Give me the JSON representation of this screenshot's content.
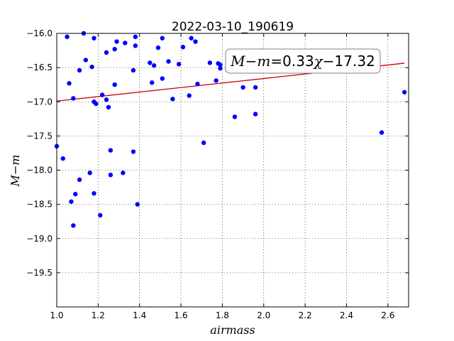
{
  "chart_data": {
    "type": "scatter",
    "title": "2022-03-10_190619",
    "xlabel": "airmass",
    "ylabel": "M−m",
    "xlim": [
      1.0,
      2.7
    ],
    "ylim": [
      -16.0,
      -20.0
    ],
    "y_inverted": true,
    "x_ticks": [
      1.0,
      1.2,
      1.4,
      1.6,
      1.8,
      2.0,
      2.2,
      2.4,
      2.6
    ],
    "x_tick_labels": [
      "1.0",
      "1.2",
      "1.4",
      "1.6",
      "1.8",
      "2.0",
      "2.2",
      "2.4",
      "2.6"
    ],
    "y_ticks": [
      -16.0,
      -16.5,
      -17.0,
      -17.5,
      -18.0,
      -18.5,
      -19.0,
      -19.5
    ],
    "y_tick_labels": [
      "−16.0",
      "−16.5",
      "−17.0",
      "−17.5",
      "−18.0",
      "−18.5",
      "−19.0",
      "−19.5"
    ],
    "grid": true,
    "series": [
      {
        "kind": "points",
        "color": "#0000ff",
        "points": [
          [
            1.0,
            -17.65
          ],
          [
            1.03,
            -17.83
          ],
          [
            1.05,
            -16.05
          ],
          [
            1.06,
            -16.73
          ],
          [
            1.07,
            -18.46
          ],
          [
            1.08,
            -16.95
          ],
          [
            1.08,
            -18.81
          ],
          [
            1.09,
            -18.35
          ],
          [
            1.11,
            -18.14
          ],
          [
            1.11,
            -16.54
          ],
          [
            1.13,
            -16.0
          ],
          [
            1.14,
            -16.39
          ],
          [
            1.16,
            -18.04
          ],
          [
            1.17,
            -16.49
          ],
          [
            1.18,
            -16.07
          ],
          [
            1.18,
            -17.0
          ],
          [
            1.18,
            -18.34
          ],
          [
            1.19,
            -17.03
          ],
          [
            1.21,
            -18.66
          ],
          [
            1.22,
            -16.9
          ],
          [
            1.24,
            -16.97
          ],
          [
            1.24,
            -16.28
          ],
          [
            1.25,
            -17.08
          ],
          [
            1.26,
            -17.71
          ],
          [
            1.26,
            -18.07
          ],
          [
            1.28,
            -16.23
          ],
          [
            1.28,
            -16.75
          ],
          [
            1.29,
            -16.12
          ],
          [
            1.32,
            -18.04
          ],
          [
            1.33,
            -16.14
          ],
          [
            1.37,
            -16.54
          ],
          [
            1.37,
            -17.73
          ],
          [
            1.38,
            -16.18
          ],
          [
            1.38,
            -16.05
          ],
          [
            1.39,
            -18.5
          ],
          [
            1.45,
            -16.43
          ],
          [
            1.46,
            -16.72
          ],
          [
            1.47,
            -16.47
          ],
          [
            1.49,
            -16.21
          ],
          [
            1.51,
            -16.07
          ],
          [
            1.51,
            -16.66
          ],
          [
            1.54,
            -16.41
          ],
          [
            1.56,
            -16.96
          ],
          [
            1.59,
            -16.45
          ],
          [
            1.61,
            -16.2
          ],
          [
            1.64,
            -16.91
          ],
          [
            1.65,
            -16.07
          ],
          [
            1.67,
            -16.12
          ],
          [
            1.68,
            -16.74
          ],
          [
            1.71,
            -17.6
          ],
          [
            1.74,
            -16.43
          ],
          [
            1.77,
            -16.69
          ],
          [
            1.78,
            -16.44
          ],
          [
            1.79,
            -16.46
          ],
          [
            1.79,
            -16.51
          ],
          [
            1.86,
            -17.22
          ],
          [
            1.9,
            -16.79
          ],
          [
            1.96,
            -17.18
          ],
          [
            1.96,
            -16.79
          ],
          [
            2.57,
            -17.45
          ],
          [
            2.68,
            -16.86
          ]
        ]
      },
      {
        "kind": "fit_line",
        "color": "#cc0000",
        "slope": 0.33,
        "intercept": -17.32,
        "x_range": [
          1.0,
          2.68
        ]
      }
    ],
    "annotation": {
      "lhs": "M−m",
      "eq": "=",
      "slope": "0.33",
      "var": "χ",
      "intercept": "−17.32",
      "placement": "upper-right"
    }
  }
}
